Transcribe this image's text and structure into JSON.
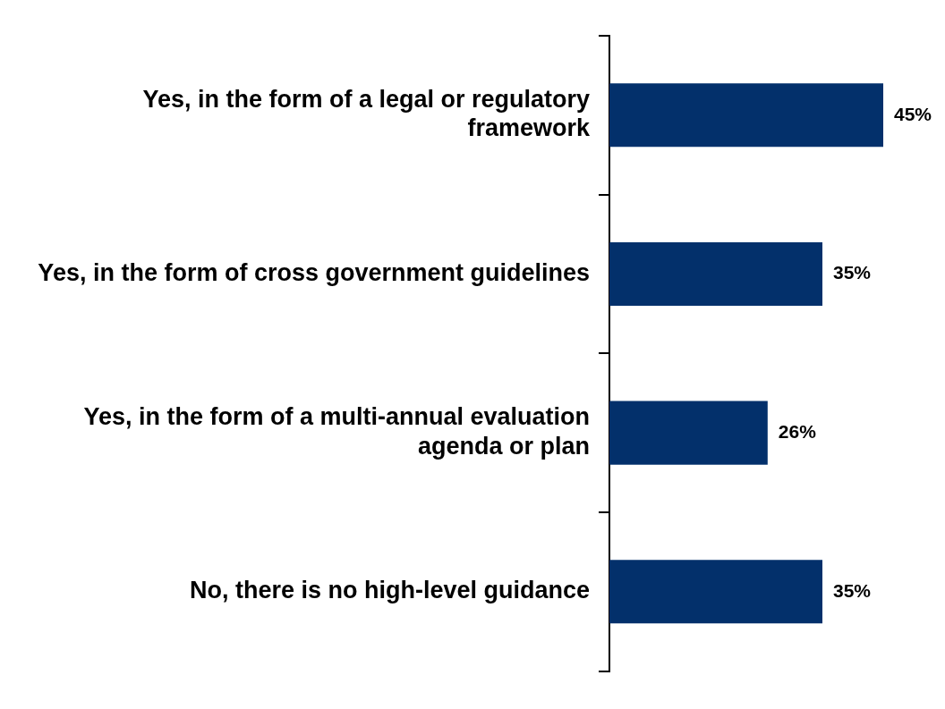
{
  "chart_data": {
    "type": "bar",
    "orientation": "horizontal",
    "categories": [
      "Yes, in the form of a legal or regulatory framework",
      "Yes, in the form of cross government guidelines",
      "Yes, in the form of a multi-annual evaluation agenda or plan",
      "No, there is no high-level guidance"
    ],
    "values": [
      45,
      35,
      26,
      35
    ],
    "value_labels": [
      "45%",
      "35%",
      "26%",
      "35%"
    ],
    "color": "#03306b"
  }
}
